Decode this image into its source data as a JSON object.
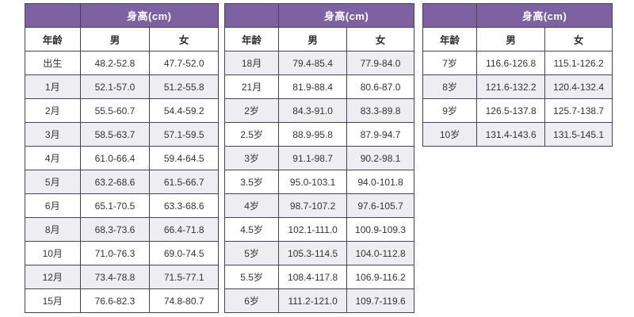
{
  "page": {
    "background": "#ffffff"
  },
  "colors": {
    "header_bg": "#7d61a0",
    "header_text": "#ffffff",
    "band_divider": "#c9bcdb",
    "border": "#45425c",
    "row_bg": "#ffffff",
    "row_alt_bg": "#eeedf2",
    "col_header_bg": "#ffffff",
    "text": "#333333"
  },
  "tables": [
    {
      "title": "身高(cm)",
      "columns": [
        "年龄",
        "男",
        "女"
      ],
      "first_row_shaded": false,
      "rows": [
        [
          "出生",
          "48.2-52.8",
          "47.7-52.0"
        ],
        [
          "1月",
          "52.1-57.0",
          "51.2-55.8"
        ],
        [
          "2月",
          "55.5-60.7",
          "54.4-59.2"
        ],
        [
          "3月",
          "58.5-63.7",
          "57.1-59.5"
        ],
        [
          "4月",
          "61.0-66.4",
          "59.4-64.5"
        ],
        [
          "5月",
          "63.2-68.6",
          "61.5-66.7"
        ],
        [
          "6月",
          "65.1-70.5",
          "63.3-68.6"
        ],
        [
          "8月",
          "68.3-73.6",
          "66.4-71.8"
        ],
        [
          "10月",
          "71.0-76.3",
          "69.0-74.5"
        ],
        [
          "12月",
          "73.4-78.8",
          "71.5-77.1"
        ],
        [
          "15月",
          "76.6-82.3",
          "74.8-80.7"
        ]
      ]
    },
    {
      "title": "身高(cm)",
      "columns": [
        "年龄",
        "男",
        "女"
      ],
      "first_row_shaded": true,
      "rows": [
        [
          "18月",
          "79.4-85.4",
          "77.9-84.0"
        ],
        [
          "21月",
          "81.9-88.4",
          "80.6-87.0"
        ],
        [
          "2岁",
          "84.3-91.0",
          "83.3-89.8"
        ],
        [
          "2.5岁",
          "88.9-95.8",
          "87.9-94.7"
        ],
        [
          "3岁",
          "91.1-98.7",
          "90.2-98.1"
        ],
        [
          "3.5岁",
          "95.0-103.1",
          "94.0-101.8"
        ],
        [
          "4岁",
          "98.7-107.2",
          "97.6-105.7"
        ],
        [
          "4.5岁",
          "102.1-111.0",
          "100.9-109.3"
        ],
        [
          "5岁",
          "105.3-114.5",
          "104.0-112.8"
        ],
        [
          "5.5岁",
          "108.4-117.8",
          "106.9-116.2"
        ],
        [
          "6岁",
          "111.2-121.0",
          "109.7-119.6"
        ]
      ]
    },
    {
      "title": "身高(cm)",
      "columns": [
        "年龄",
        "男",
        "女"
      ],
      "first_row_shaded": false,
      "rows": [
        [
          "7岁",
          "116.6-126.8",
          "115.1-126.2"
        ],
        [
          "8岁",
          "121.6-132.2",
          "120.4-132.4"
        ],
        [
          "9岁",
          "126.5-137.8",
          "125.7-138.7"
        ],
        [
          "10岁",
          "131.4-143.6",
          "131.5-145.1"
        ]
      ]
    }
  ]
}
